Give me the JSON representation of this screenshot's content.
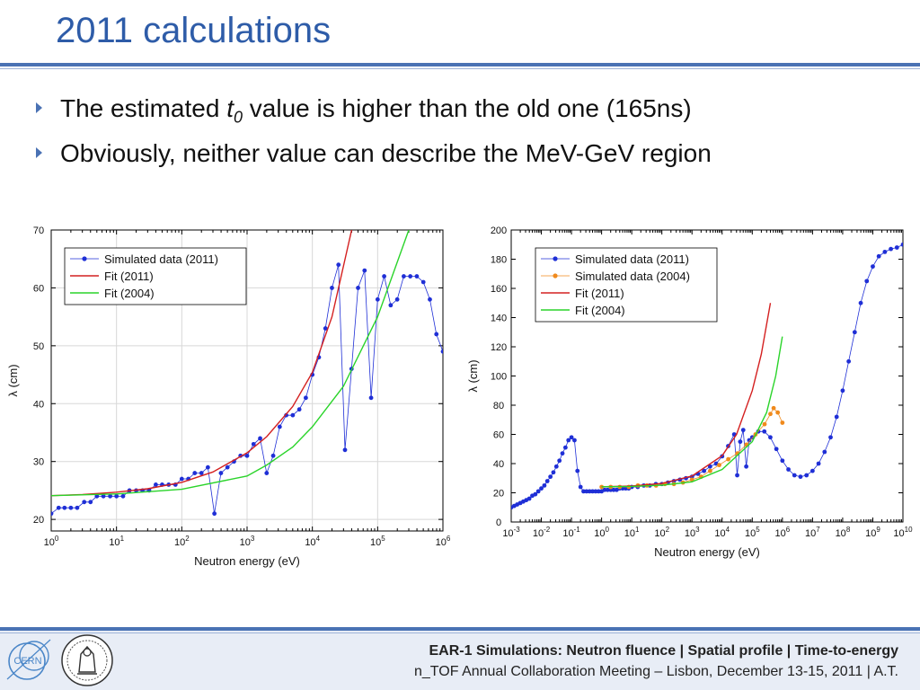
{
  "slide": {
    "title": "2011 calculations",
    "bullets": [
      {
        "pre": "The estimated ",
        "var": "t",
        "sub": "0",
        "post": " value is higher than the old one (165ns)"
      },
      {
        "text": "Obviously, neither value can describe the MeV-GeV region"
      }
    ],
    "footer": {
      "line1": "EAR-1 Simulations: Neutron fluence | Spatial profile | Time-to-energy",
      "line2": "n_TOF Annual Collaboration Meeting – Lisbon, December 13-15, 2011 | A.T."
    },
    "logos": [
      "cern-logo",
      "ntof-logo"
    ]
  },
  "colors": {
    "title": "#2e5ca8",
    "accent": "#4a72b4",
    "sim2011": "#1f2fd6",
    "sim2004": "#f08a1c",
    "fit2011": "#d42020",
    "fit2004": "#2ad42a"
  },
  "chart_data": [
    {
      "type": "line",
      "xlabel": "Neutron energy (eV)",
      "ylabel": "λ (cm)",
      "xscale": "log",
      "xlim": [
        1,
        1000000
      ],
      "ylim": [
        18,
        70
      ],
      "xticks": [
        "10^0",
        "10^1",
        "10^2",
        "10^3",
        "10^4",
        "10^5",
        "10^6"
      ],
      "yticks": [
        20,
        30,
        40,
        50,
        60,
        70
      ],
      "grid": true,
      "legend_position": "top-left",
      "series": [
        {
          "name": "Simulated data (2011)",
          "style": "line-markers",
          "color": "#1f2fd6",
          "x": [
            1,
            1.3,
            1.6,
            2,
            2.5,
            3.2,
            4,
            5,
            6.3,
            8,
            10,
            12.6,
            15.8,
            20,
            25,
            31.6,
            40,
            50,
            63,
            80,
            100,
            126,
            158,
            200,
            251,
            316,
            398,
            501,
            631,
            794,
            1000,
            1259,
            1585,
            1995,
            2512,
            3162,
            3981,
            5012,
            6310,
            7943,
            10000,
            12589,
            15849,
            19953,
            25119,
            31623,
            39811,
            50119,
            63096,
            79433,
            100000,
            125893,
            158489,
            199526,
            251189,
            316228,
            398107,
            501187,
            630957,
            794328,
            1000000
          ],
          "y": [
            21,
            22,
            22,
            22,
            22,
            23,
            23,
            24,
            24,
            24,
            24,
            24,
            25,
            25,
            25,
            25,
            26,
            26,
            26,
            26,
            27,
            27,
            28,
            28,
            29,
            21,
            28,
            29,
            30,
            31,
            31,
            33,
            34,
            28,
            31,
            36,
            38,
            38,
            39,
            41,
            45,
            48,
            53,
            60,
            64,
            32,
            46,
            60,
            63,
            41,
            58,
            62,
            57,
            58,
            62,
            62,
            62,
            61,
            58,
            52,
            49
          ]
        },
        {
          "name": "Fit (2011)",
          "style": "line",
          "color": "#d42020",
          "x": [
            1,
            3,
            10,
            30,
            100,
            300,
            1000,
            2000,
            5000,
            10000,
            20000,
            40000
          ],
          "y": [
            24.1,
            24.3,
            24.7,
            25.3,
            26.4,
            28.2,
            31.5,
            34.3,
            39.5,
            45.4,
            55,
            70
          ]
        },
        {
          "name": "Fit (2004)",
          "style": "line",
          "color": "#2ad42a",
          "x": [
            1,
            10,
            100,
            1000,
            2000,
            5000,
            10000,
            30000,
            100000,
            300000
          ],
          "y": [
            24.1,
            24.4,
            25.2,
            27.5,
            29.4,
            32.5,
            36,
            43,
            55,
            70
          ]
        }
      ]
    },
    {
      "type": "line",
      "xlabel": "Neutron energy (eV)",
      "ylabel": "λ (cm)",
      "xscale": "log",
      "xlim": [
        0.001,
        10000000000
      ],
      "ylim": [
        0,
        200
      ],
      "xticks": [
        "10^-3",
        "10^-2",
        "10^-1",
        "10^0",
        "10^1",
        "10^2",
        "10^3",
        "10^4",
        "10^5",
        "10^6",
        "10^7",
        "10^8",
        "10^9",
        "10^10"
      ],
      "yticks": [
        0,
        20,
        40,
        60,
        80,
        100,
        120,
        140,
        160,
        180,
        200
      ],
      "grid": false,
      "legend_position": "top-left",
      "series": [
        {
          "name": "Simulated data (2011)",
          "style": "line-markers",
          "color": "#1f2fd6",
          "x": [
            0.001,
            0.00126,
            0.00158,
            0.002,
            0.00251,
            0.00316,
            0.00398,
            0.00501,
            0.00631,
            0.00794,
            0.01,
            0.0126,
            0.0158,
            0.02,
            0.0251,
            0.0316,
            0.0398,
            0.0501,
            0.0631,
            0.0794,
            0.1,
            0.126,
            0.158,
            0.2,
            0.251,
            0.316,
            0.398,
            0.501,
            0.631,
            0.794,
            1,
            1.26,
            1.58,
            2,
            2.51,
            3.16,
            3.98,
            5.01,
            6.31,
            7.94,
            10,
            15.8,
            25.1,
            39.8,
            63.1,
            100,
            158,
            251,
            398,
            631,
            1000,
            1585,
            2512,
            3981,
            6310,
            10000,
            15849,
            25119,
            31623,
            39811,
            50119,
            63096,
            79433,
            100000,
            158489,
            251189,
            398107,
            630957,
            1000000,
            1584893,
            2511886,
            3981072,
            6309573,
            10000000,
            15848932,
            25118864,
            39810717,
            63095734,
            100000000,
            158489319,
            251188643,
            398107171,
            630957344,
            1000000000,
            1584893192,
            2511886432,
            3981071706,
            6309573445,
            10000000000
          ],
          "y": [
            10,
            11,
            12,
            13,
            14,
            15,
            16,
            18,
            19,
            21,
            23,
            25,
            28,
            31,
            34,
            38,
            42,
            47,
            51,
            56,
            58,
            56,
            35,
            24,
            21,
            21,
            21,
            21,
            21,
            21,
            21,
            22,
            22,
            22,
            22,
            22,
            23,
            23,
            23,
            23,
            24,
            24,
            25,
            25,
            26,
            26,
            27,
            28,
            29,
            30,
            31,
            33,
            35,
            38,
            40,
            45,
            52,
            60,
            32,
            55,
            63,
            38,
            56,
            58,
            62,
            62,
            58,
            50,
            42,
            36,
            32,
            31,
            32,
            35,
            40,
            48,
            58,
            72,
            90,
            110,
            130,
            150,
            165,
            175,
            182,
            185,
            187,
            188,
            190
          ]
        },
        {
          "name": "Simulated data (2004)",
          "style": "line-markers",
          "color": "#f08a1c",
          "x": [
            1,
            2,
            4,
            8,
            16,
            32,
            64,
            126,
            251,
            501,
            1000,
            2000,
            4000,
            8000,
            16000,
            32000,
            64000,
            128000,
            256000,
            400000,
            512000,
            700000,
            1000000
          ],
          "y": [
            24,
            24,
            24,
            24,
            25,
            25,
            25,
            26,
            26,
            27,
            29,
            31,
            35,
            39,
            43,
            47,
            53,
            60,
            67,
            74,
            78,
            75,
            68
          ]
        },
        {
          "name": "Fit (2011)",
          "style": "line",
          "color": "#d42020",
          "x": [
            1,
            10,
            100,
            1000,
            10000,
            30000,
            100000,
            200000,
            400000
          ],
          "y": [
            24.1,
            24.7,
            26.4,
            31.5,
            45.4,
            60,
            90,
            115,
            150
          ]
        },
        {
          "name": "Fit (2004)",
          "style": "line",
          "color": "#2ad42a",
          "x": [
            1,
            10,
            100,
            1000,
            10000,
            100000,
            300000,
            600000,
            1000000
          ],
          "y": [
            24.1,
            24.4,
            25.2,
            27.5,
            36,
            55,
            75,
            100,
            127
          ]
        }
      ]
    }
  ]
}
